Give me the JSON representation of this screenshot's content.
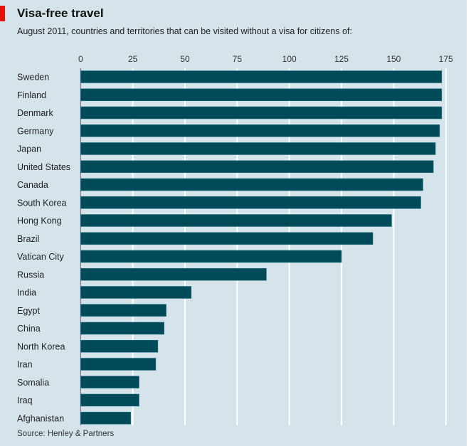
{
  "chart_data": {
    "type": "bar",
    "orientation": "horizontal",
    "title": "Visa-free travel",
    "subtitle": "August 2011, countries and territories that can be visited without a visa for citizens of:",
    "source": "Source: Henley & Partners",
    "categories": [
      "Sweden",
      "Finland",
      "Denmark",
      "Germany",
      "Japan",
      "United States",
      "Canada",
      "South Korea",
      "Hong Kong",
      "Brazil",
      "Vatican City",
      "Russia",
      "India",
      "Egypt",
      "China",
      "North Korea",
      "Iran",
      "Somalia",
      "Iraq",
      "Afghanistan"
    ],
    "values": [
      173,
      173,
      173,
      172,
      170,
      169,
      164,
      163,
      149,
      140,
      125,
      89,
      53,
      41,
      40,
      37,
      36,
      28,
      28,
      24
    ],
    "xlim": [
      0,
      175
    ],
    "xticks": [
      "0",
      "25",
      "50",
      "75",
      "100",
      "125",
      "150",
      "175"
    ],
    "xaxis_position": "top",
    "grid": true,
    "colors": {
      "bar": "#004a5a",
      "background": "#d5e4ea",
      "grid": "#ffffff",
      "accent": "#e3120b"
    }
  }
}
